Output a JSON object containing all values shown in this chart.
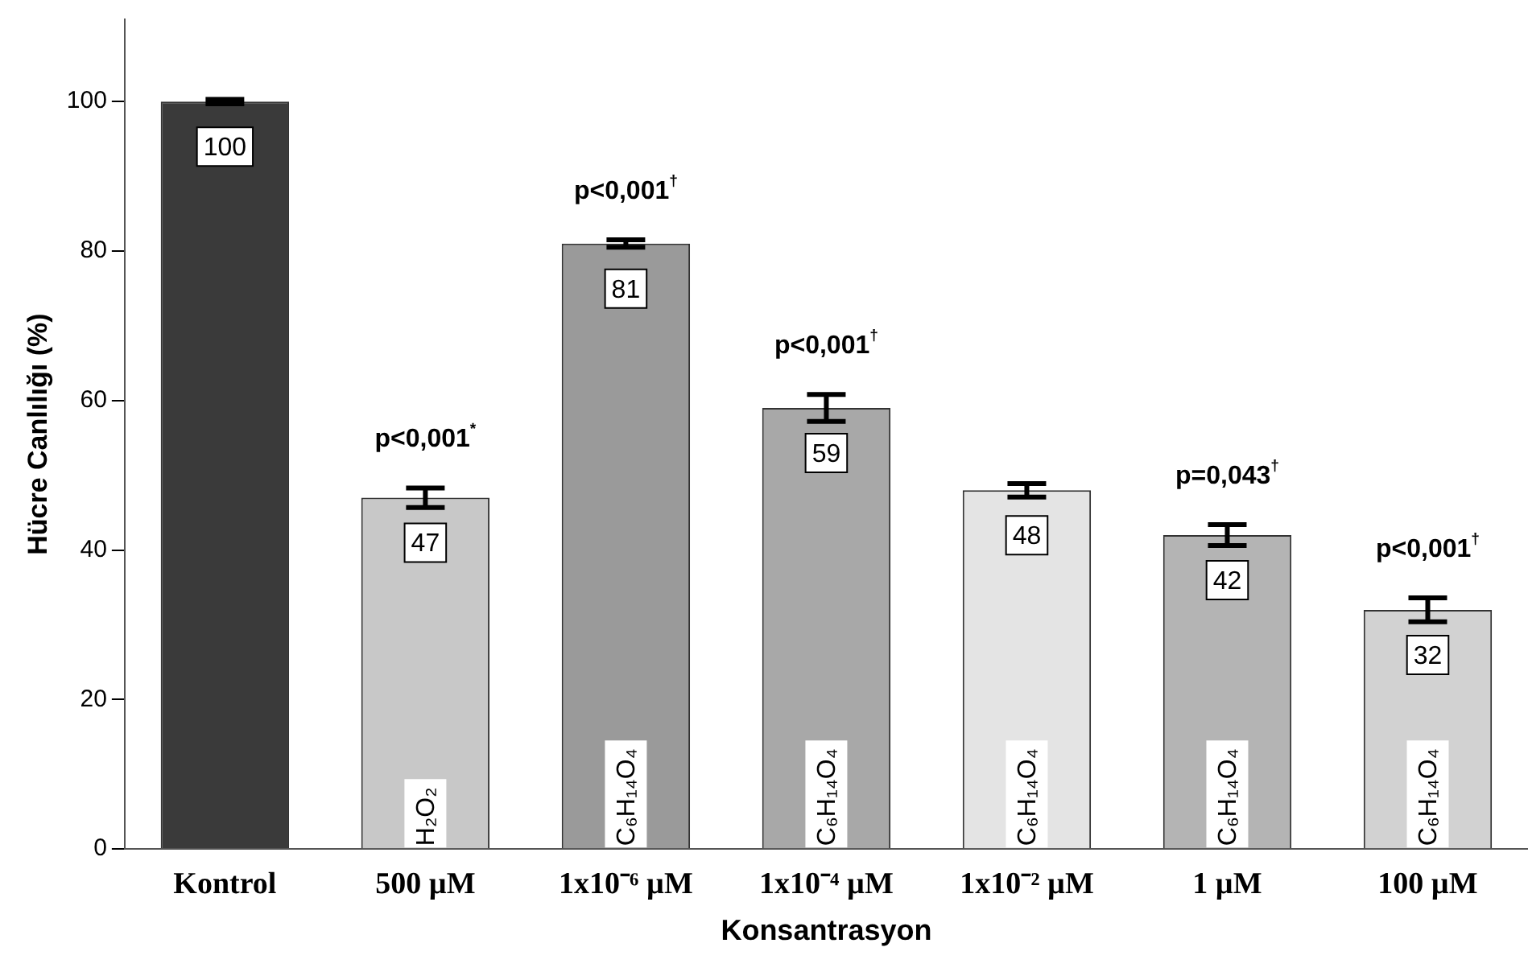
{
  "chart_data": {
    "type": "bar",
    "xlabel": "Konsantrasyon",
    "ylabel": "Hücre Canlılığı (%)",
    "categories": [
      "Kontrol",
      "500 µM",
      "1x10⁻⁶ µM",
      "1x10⁻⁴ µM",
      "1x10⁻² µM",
      "1 µM",
      "100 µM"
    ],
    "values": [
      100,
      47,
      81,
      59,
      48,
      42,
      32
    ],
    "errors": [
      0.3,
      1.3,
      0.5,
      1.8,
      0.9,
      1.4,
      1.6
    ],
    "colors": [
      "#3a3a3a",
      "#c8c8c8",
      "#9a9a9a",
      "#a8a8a8",
      "#e4e4e4",
      "#b4b4b4",
      "#d2d2d2"
    ],
    "data_labels": true,
    "ylim": [
      0,
      111
    ],
    "yticks": [
      0,
      20,
      40,
      60,
      80,
      100
    ],
    "grid": false,
    "annotations": [
      {
        "text": "p<0,001$^{*}$",
        "x": "500 µM",
        "y": 47
      },
      {
        "text": "p<0,001$^{†}$",
        "x": "1x10⁻⁶ µM",
        "y": 81
      },
      {
        "text": "p<0,001$^{†}$",
        "x": "1x10⁻⁴ µM",
        "y": 59
      },
      {
        "text": "p=0,043$^{†}$",
        "x": "1 µM",
        "y": 42
      },
      {
        "text": "p<0,001$^{†}$",
        "x": "100 µM",
        "y": 32
      },
      {
        "text": "H₂O₂",
        "x": "500 µM",
        "y": 0
      },
      {
        "text": "C₆H₁₄O₄",
        "x": "1x10⁻⁶ µM",
        "y": 0
      },
      {
        "text": "C₆H₁₄O₄",
        "x": "1x10⁻⁴ µM",
        "y": 0
      },
      {
        "text": "C₆H₁₄O₄",
        "x": "1x10⁻² µM",
        "y": 0
      },
      {
        "text": "C₆H₁₄O₄",
        "x": "1 µM",
        "y": 0
      },
      {
        "text": "C₆H₁₄O₄",
        "x": "100 µM",
        "y": 0
      }
    ]
  }
}
